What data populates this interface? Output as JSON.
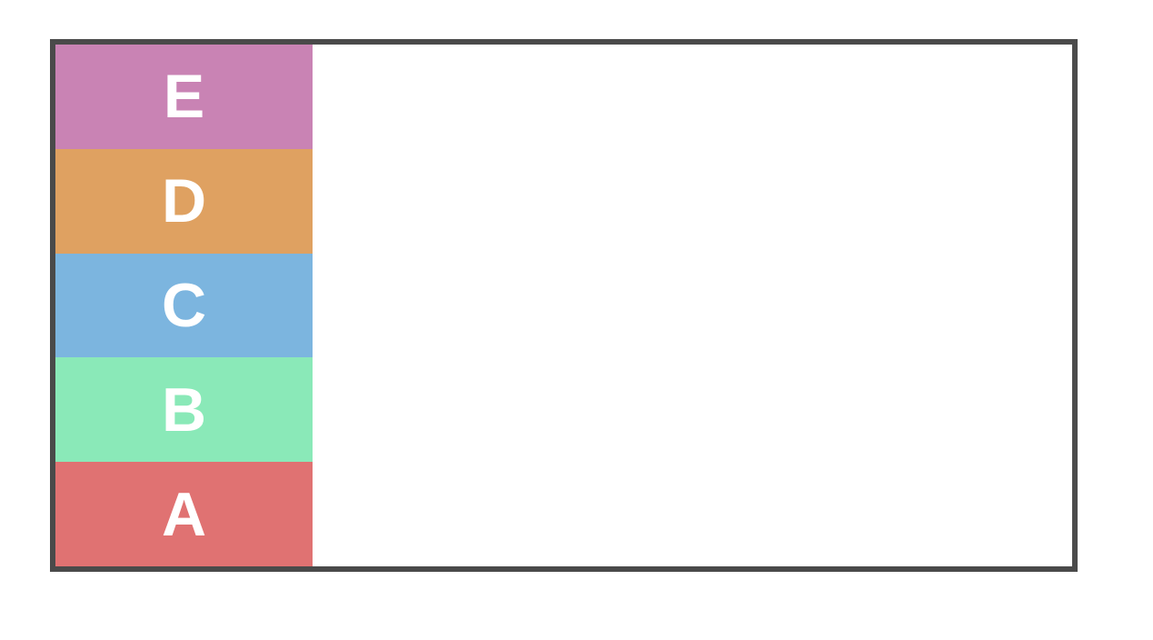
{
  "tier_list": {
    "tiers": [
      {
        "label": "E",
        "color": "#c983b4"
      },
      {
        "label": "D",
        "color": "#dfa161"
      },
      {
        "label": "C",
        "color": "#7cb5df"
      },
      {
        "label": "B",
        "color": "#8ae9b8"
      },
      {
        "label": "A",
        "color": "#e07272"
      }
    ],
    "colors": {
      "border": "#4a4a4a",
      "label_text": "#ffffff",
      "row_background": "#ffffff",
      "page_background": "#ffffff"
    }
  }
}
